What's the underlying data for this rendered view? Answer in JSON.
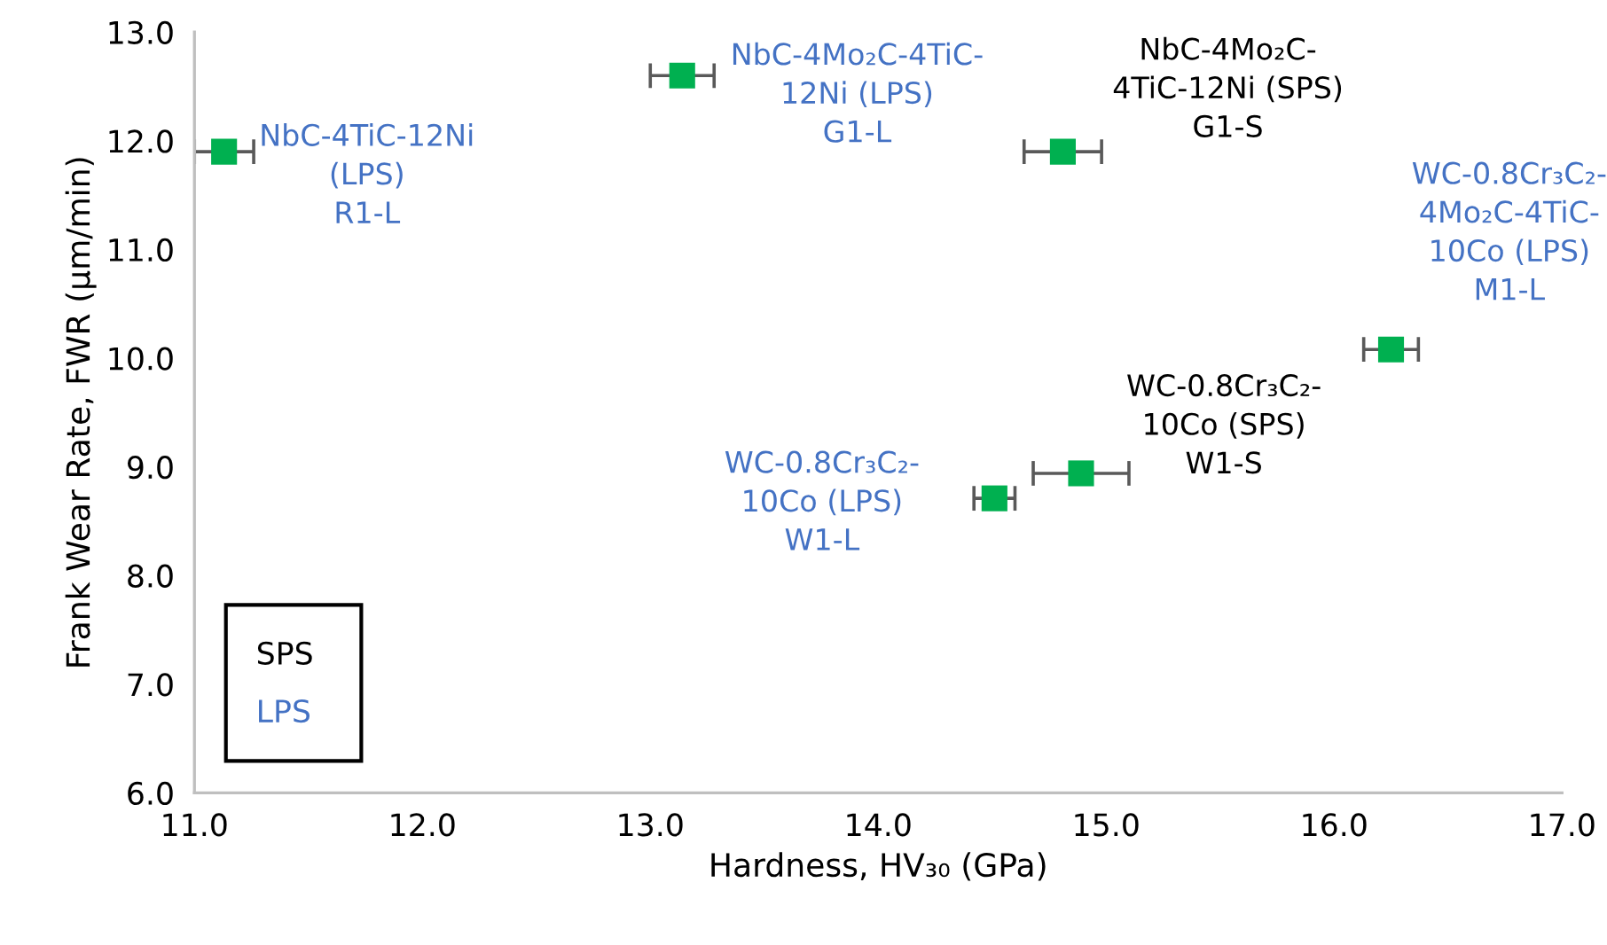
{
  "chart_data": {
    "type": "scatter",
    "xlabel": "Hardness, HV₃₀ (GPa)",
    "ylabel": "Frank Wear Rate, FWR (μm/min)",
    "series": [
      {
        "color": "#00b050",
        "x": [
          14.81,
          14.89
        ],
        "values": [
          11.9,
          8.94
        ],
        "xerrors": [
          0.17,
          0.21
        ]
      },
      {
        "color": "#00b050",
        "x": [
          11.13,
          13.14,
          16.25,
          14.51
        ],
        "values": [
          11.9,
          12.6,
          10.08,
          8.71
        ],
        "xerrors": [
          0.13,
          0.14,
          0.12,
          0.09
        ]
      }
    ],
    "marker": "square",
    "xlim": [
      11.0,
      17.0
    ],
    "ylim": [
      6.0,
      13.0
    ],
    "xticks": [
      {
        "value": 11,
        "label": "11.0"
      },
      {
        "value": 12,
        "label": "12.0"
      },
      {
        "value": 13,
        "label": "13.0"
      },
      {
        "value": 14,
        "label": "14.0"
      },
      {
        "value": 15,
        "label": "15.0"
      },
      {
        "value": 16,
        "label": "16.0"
      },
      {
        "value": 17,
        "label": "17.0"
      }
    ],
    "yticks": [
      {
        "value": 6,
        "label": "6.0"
      },
      {
        "value": 7,
        "label": "7.0"
      },
      {
        "value": 8,
        "label": "8.0"
      },
      {
        "value": 9,
        "label": "9.0"
      },
      {
        "value": 10,
        "label": "10.0"
      },
      {
        "value": 11,
        "label": "11.0"
      },
      {
        "value": 12,
        "label": "12.0"
      },
      {
        "value": 13,
        "label": "13.0"
      }
    ],
    "grid": false,
    "annotations": [
      {
        "text": "NbC-4TiC-12Ni\n(LPS)\nR1-L",
        "x": 11.13,
        "y": 11.9
      },
      {
        "text": "NbC-4Mo₂C-4TiC-\n12Ni (LPS)\nG1-L",
        "x": 13.14,
        "y": 12.6
      },
      {
        "text": "NbC-4Mo₂C-\n4TiC-12Ni (SPS)\nG1-S",
        "x": 14.81,
        "y": 11.9
      },
      {
        "text": "WC-0.8Cr₃C₂-\n4Mo₂C-4TiC-\n10Co (LPS)\nM1-L",
        "x": 16.25,
        "y": 10.08
      },
      {
        "text": "WC-0.8Cr₃C₂-\n10Co (SPS)\nW1-S",
        "x": 14.89,
        "y": 8.94
      },
      {
        "text": "WC-0.8Cr₃C₂-\n10Co (LPS)\nW1-L",
        "x": 14.51,
        "y": 8.71
      },
      "SPS",
      "LPS"
    ]
  }
}
